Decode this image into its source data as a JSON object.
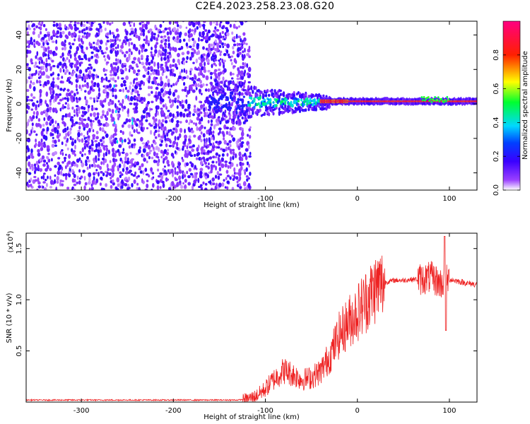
{
  "title": "C2E4.2023.258.23.08.G20",
  "chart_data": [
    {
      "type": "heatmap",
      "xlabel": "Height of straight line (km)",
      "ylabel": "Frequency (Hz)",
      "xlim": [
        -360,
        130
      ],
      "ylim": [
        -50,
        48
      ],
      "xticks": [
        -300,
        -200,
        -100,
        0,
        100
      ],
      "yticks": [
        -40,
        -20,
        0,
        20,
        40
      ],
      "regions": [
        {
          "description": "broadband noise",
          "x_range": [
            -360,
            -118
          ],
          "freq_range": [
            -50,
            48
          ]
        },
        {
          "description": "narrowing signal",
          "x_range": [
            -118,
            -30
          ],
          "freq_range": [
            -10,
            10
          ]
        },
        {
          "description": "stable tone",
          "x_range": [
            -30,
            130
          ],
          "freq_center": 1.5
        }
      ],
      "colorbar": {
        "label": "Normalized spectral amplitude",
        "range": [
          0.0,
          1.0
        ],
        "ticks": [
          0.0,
          0.2,
          0.4,
          0.6,
          0.8
        ],
        "colors": [
          "#ffffff",
          "#8000ff",
          "#0000ff",
          "#00e0ff",
          "#00ff40",
          "#ffff00",
          "#ff0000",
          "#ff0080"
        ]
      }
    },
    {
      "type": "line",
      "xlabel": "Height of straight line (km)",
      "ylabel": "SNR (10 * v/v)",
      "multiplier_label": "(x10",
      "multiplier_exp": "4",
      "multiplier_close": ")",
      "xlim": [
        -360,
        130
      ],
      "ylim": [
        0,
        1.65
      ],
      "xticks": [
        -300,
        -200,
        -100,
        0,
        100
      ],
      "yticks": [
        0.5,
        1.0,
        1.5
      ],
      "series": [
        {
          "color": "#ee2222",
          "x": [
            -360,
            -300,
            -200,
            -130,
            -120,
            -110,
            -100,
            -90,
            -80,
            -70,
            -60,
            -50,
            -40,
            -30,
            -20,
            -10,
            0,
            10,
            20,
            30,
            40,
            50,
            60,
            70,
            80,
            90,
            95,
            100,
            110,
            120,
            130
          ],
          "y": [
            0.02,
            0.02,
            0.02,
            0.02,
            0.03,
            0.06,
            0.13,
            0.23,
            0.31,
            0.27,
            0.22,
            0.24,
            0.3,
            0.45,
            0.65,
            0.78,
            0.88,
            1.0,
            1.12,
            1.17,
            1.19,
            1.19,
            1.2,
            1.2,
            1.22,
            1.16,
            1.18,
            1.2,
            1.18,
            1.16,
            1.15
          ]
        }
      ]
    }
  ]
}
